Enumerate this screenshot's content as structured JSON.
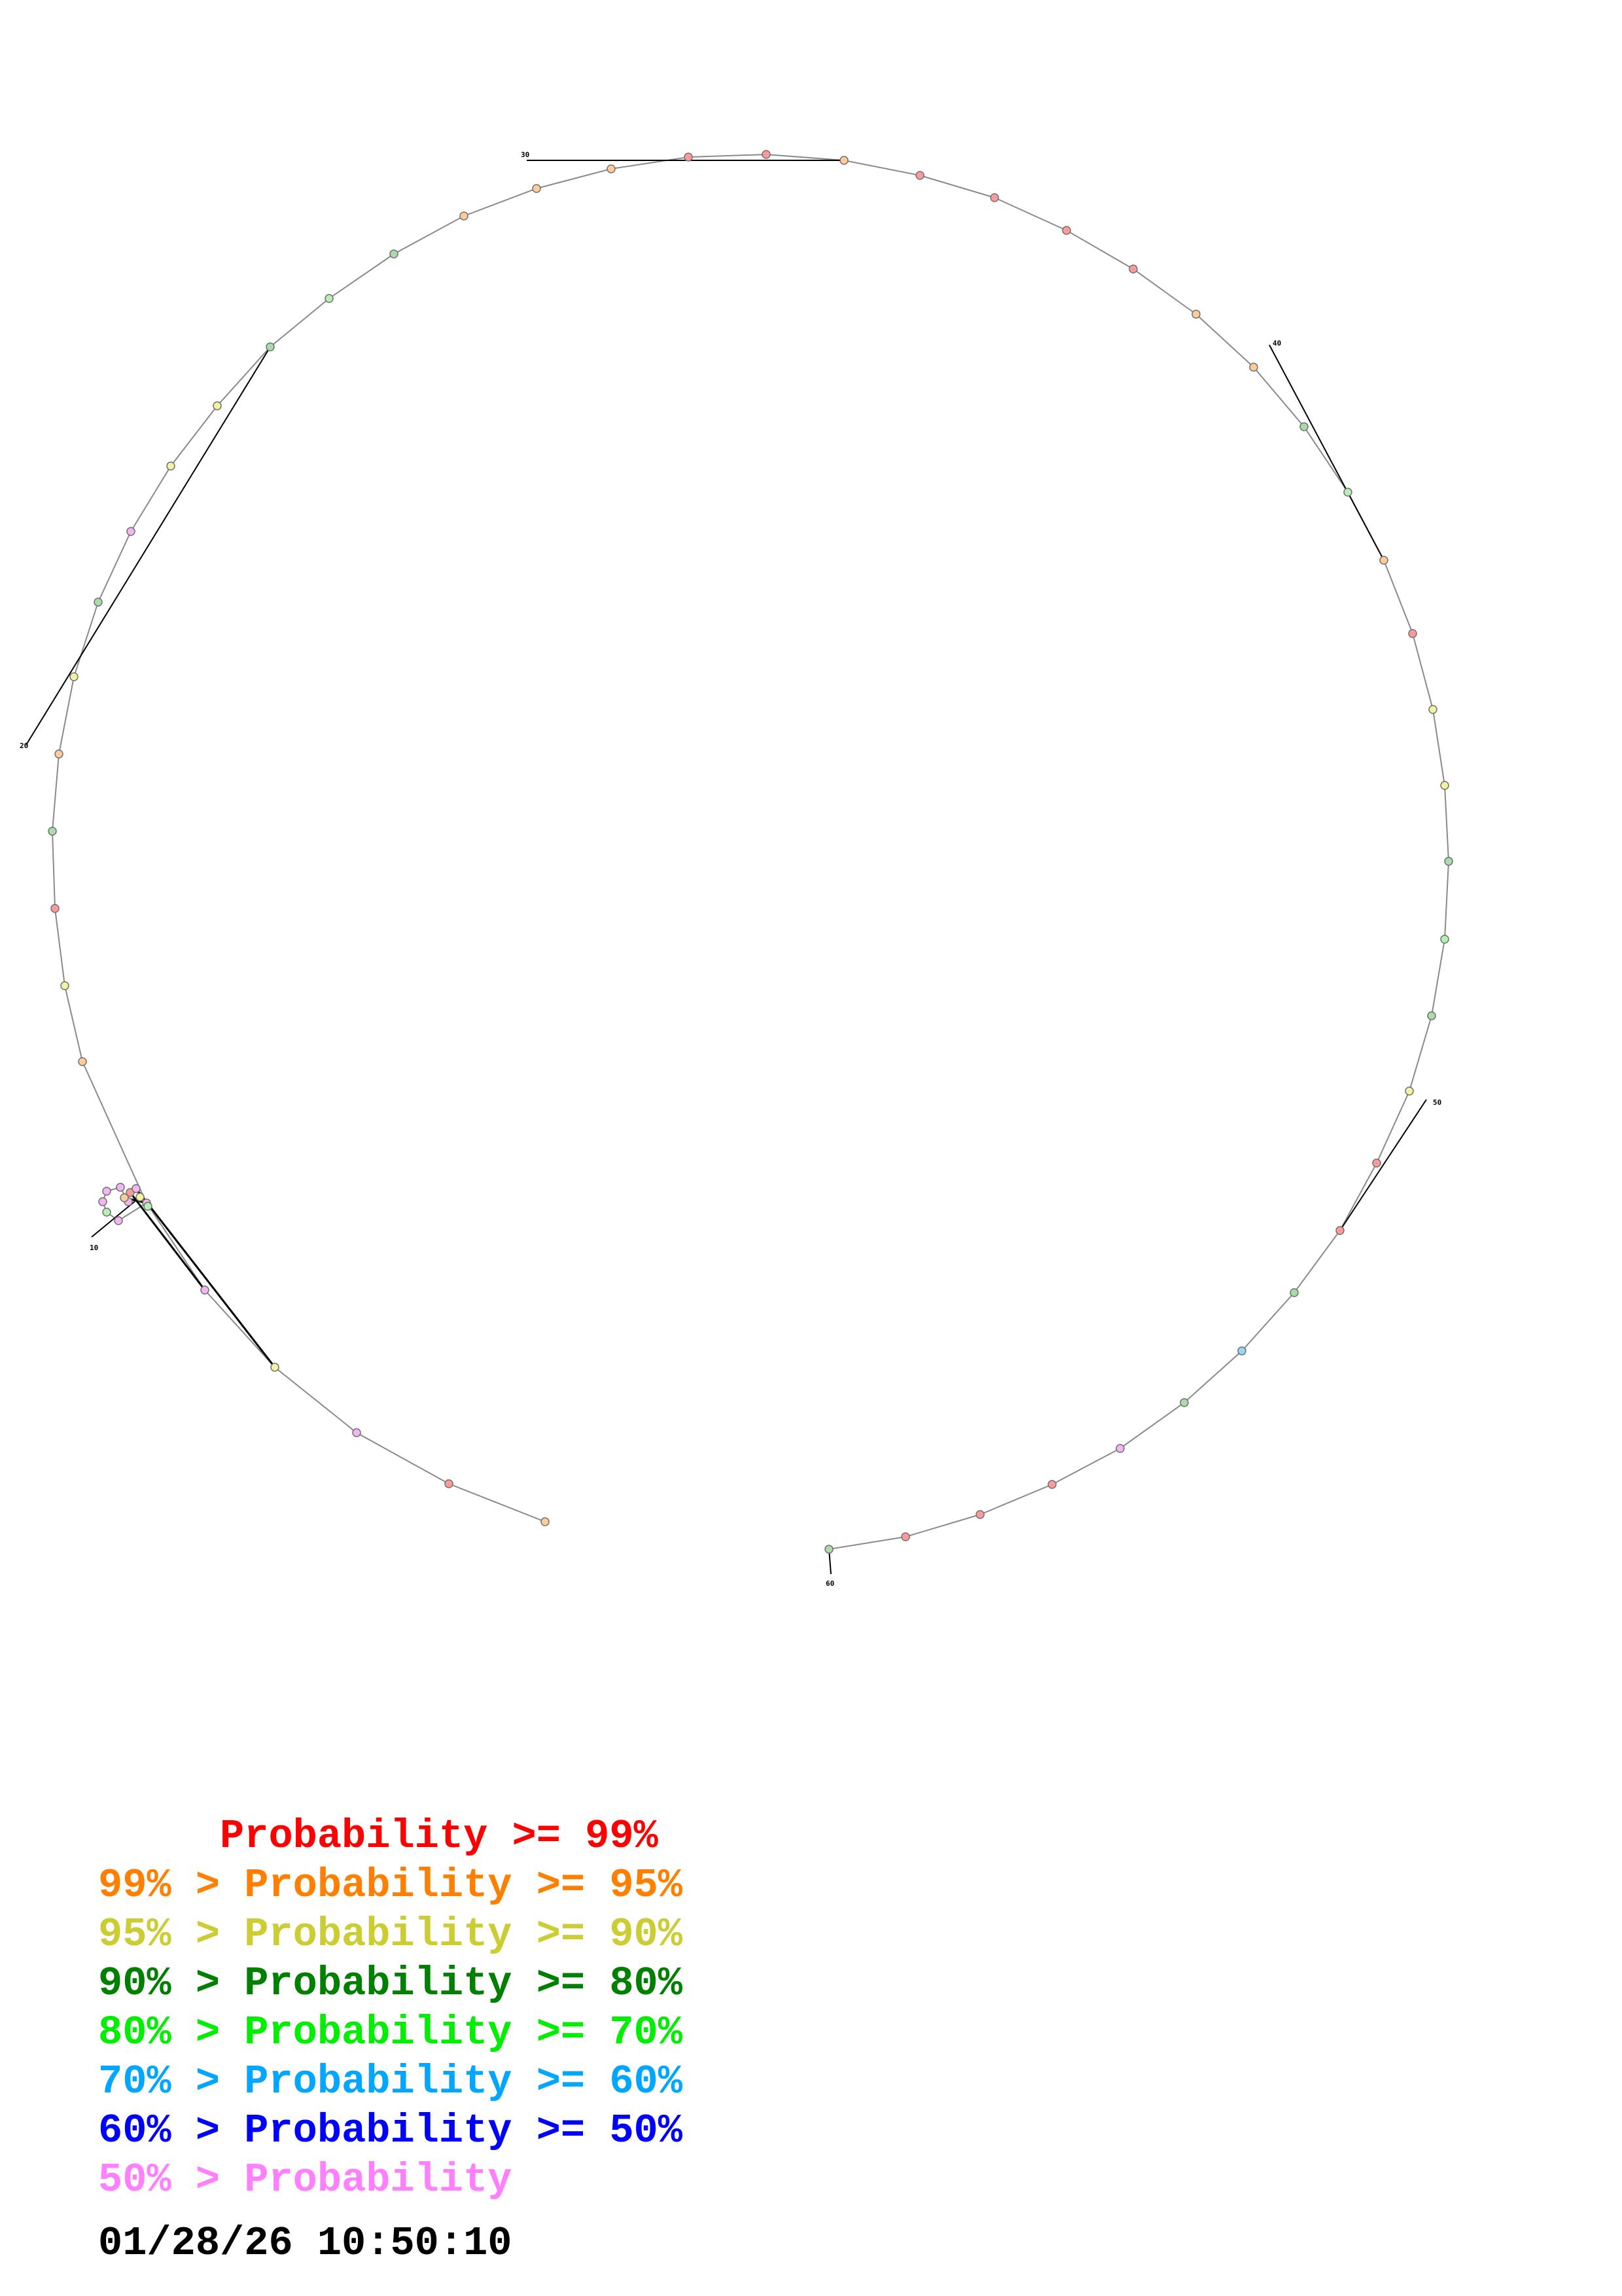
{
  "diagram": {
    "type": "rna-secondary-structure",
    "position_labels": [
      "10",
      "20",
      "30",
      "40",
      "50",
      "60"
    ],
    "colors": {
      "backbone": "#8a8a8a",
      "pair": "#000000",
      "label": "#000000",
      "nucleotide_outline": "#707070"
    },
    "nucleotide_probability_classes": [
      "orange",
      "red",
      "magenta",
      "yellow",
      "magenta",
      "magenta",
      "magenta",
      "green",
      "magenta",
      "magenta",
      "magenta",
      "magenta",
      "orange",
      "red",
      "magenta",
      "yellow",
      "green",
      "orange",
      "yellow",
      "red",
      "dkgreen",
      "orange",
      "yellow",
      "dkgreen",
      "magenta",
      "yellow",
      "yellow",
      "dkgreen",
      "green",
      "dkgreen",
      "orange",
      "orange",
      "orange",
      "red",
      "red",
      "orange",
      "red",
      "red",
      "red",
      "red",
      "orange",
      "orange",
      "dkgreen",
      "green",
      "orange",
      "red",
      "yellow",
      "yellow",
      "dkgreen",
      "green",
      "dkgreen",
      "yellow",
      "red",
      "red",
      "dkgreen",
      "blue",
      "dkgreen",
      "magenta",
      "red",
      "red",
      "red",
      "dkgreen",
      "green"
    ],
    "class_colors": {
      "red": "#ff9a9a",
      "orange": "#ffcc99",
      "yellow": "#f2f2a0",
      "dkgreen": "#a8dca8",
      "green": "#b4f0b4",
      "blue": "#9ad4f5",
      "magenta": "#f3b6f3"
    }
  },
  "legend": {
    "rows": [
      {
        "text": "     Probability >= 99%",
        "color": "#ff0000"
      },
      {
        "text": "99% > Probability >= 95%",
        "color": "#ff8000"
      },
      {
        "text": "95% > Probability >= 90%",
        "color": "#cccc33"
      },
      {
        "text": "90% > Probability >= 80%",
        "color": "#008000"
      },
      {
        "text": "80% > Probability >= 70%",
        "color": "#00ee00"
      },
      {
        "text": "70% > Probability >= 60%",
        "color": "#00a6ff"
      },
      {
        "text": "60% > Probability >= 50%",
        "color": "#0000ff"
      },
      {
        "text": "50% > Probability",
        "color": "#ff80ff"
      }
    ]
  },
  "timestamp": "01/28/26 10:50:10"
}
